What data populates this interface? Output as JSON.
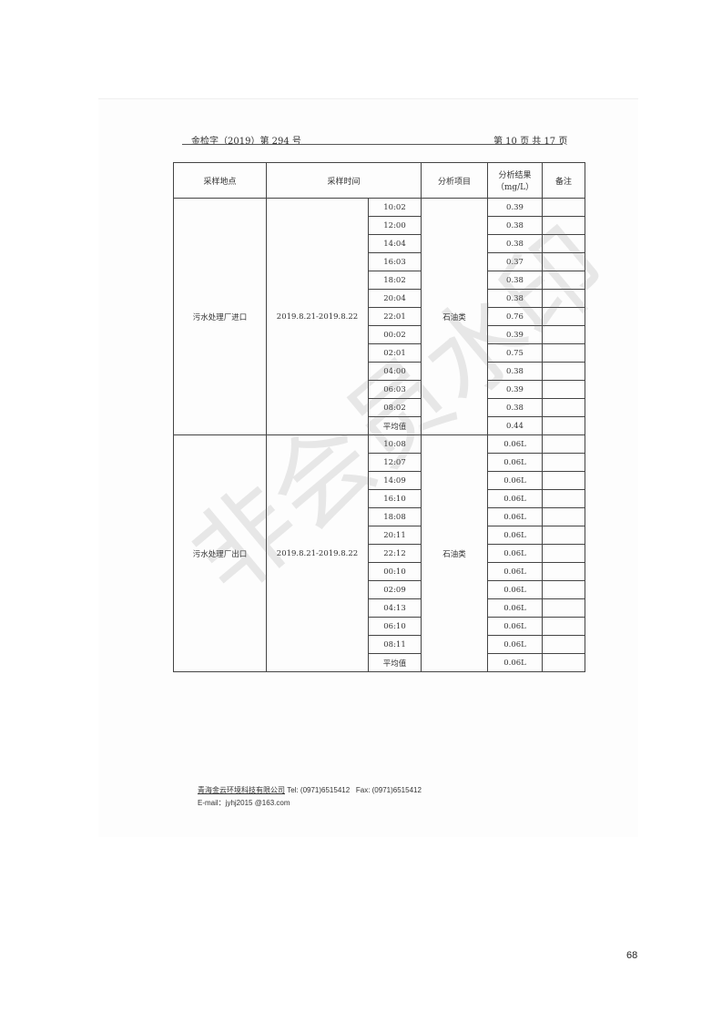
{
  "header": {
    "doc_number": "金检字（2019）第 294 号",
    "page_info": "第 10 页 共 17 页"
  },
  "table": {
    "columns": [
      "采样地点",
      "采样时间",
      "分析项目",
      "分析结果（mg/L）",
      "备注"
    ],
    "groups": [
      {
        "location": "污水处理厂进口",
        "date": "2019.8.21-2019.8.22",
        "item": "石油类",
        "rows": [
          [
            "10:02",
            "0.39"
          ],
          [
            "12:00",
            "0.38"
          ],
          [
            "14:04",
            "0.38"
          ],
          [
            "16:03",
            "0.37"
          ],
          [
            "18:02",
            "0.38"
          ],
          [
            "20:04",
            "0.38"
          ],
          [
            "22:01",
            "0.76"
          ],
          [
            "00:02",
            "0.39"
          ],
          [
            "02:01",
            "0.75"
          ],
          [
            "04:00",
            "0.38"
          ],
          [
            "06:03",
            "0.39"
          ],
          [
            "08:02",
            "0.38"
          ],
          [
            "平均值",
            "0.44"
          ]
        ]
      },
      {
        "location": "污水处理厂出口",
        "date": "2019.8.21-2019.8.22",
        "item": "石油类",
        "rows": [
          [
            "10:08",
            "0.06L"
          ],
          [
            "12:07",
            "0.06L"
          ],
          [
            "14:09",
            "0.06L"
          ],
          [
            "16:10",
            "0.06L"
          ],
          [
            "18:08",
            "0.06L"
          ],
          [
            "20:11",
            "0.06L"
          ],
          [
            "22:12",
            "0.06L"
          ],
          [
            "00:10",
            "0.06L"
          ],
          [
            "02:09",
            "0.06L"
          ],
          [
            "04:13",
            "0.06L"
          ],
          [
            "06:10",
            "0.06L"
          ],
          [
            "08:11",
            "0.06L"
          ],
          [
            "平均值",
            "0.06L"
          ]
        ]
      }
    ]
  },
  "watermark": "非会员水印",
  "footer": {
    "company": "青海金云环境科技有限公司",
    "tel": "Tel:  (0971)6515412",
    "fax": "Fax:  (0971)6515412",
    "email": "E-mail：jyhj2015 @163.com"
  },
  "page_number": "68"
}
